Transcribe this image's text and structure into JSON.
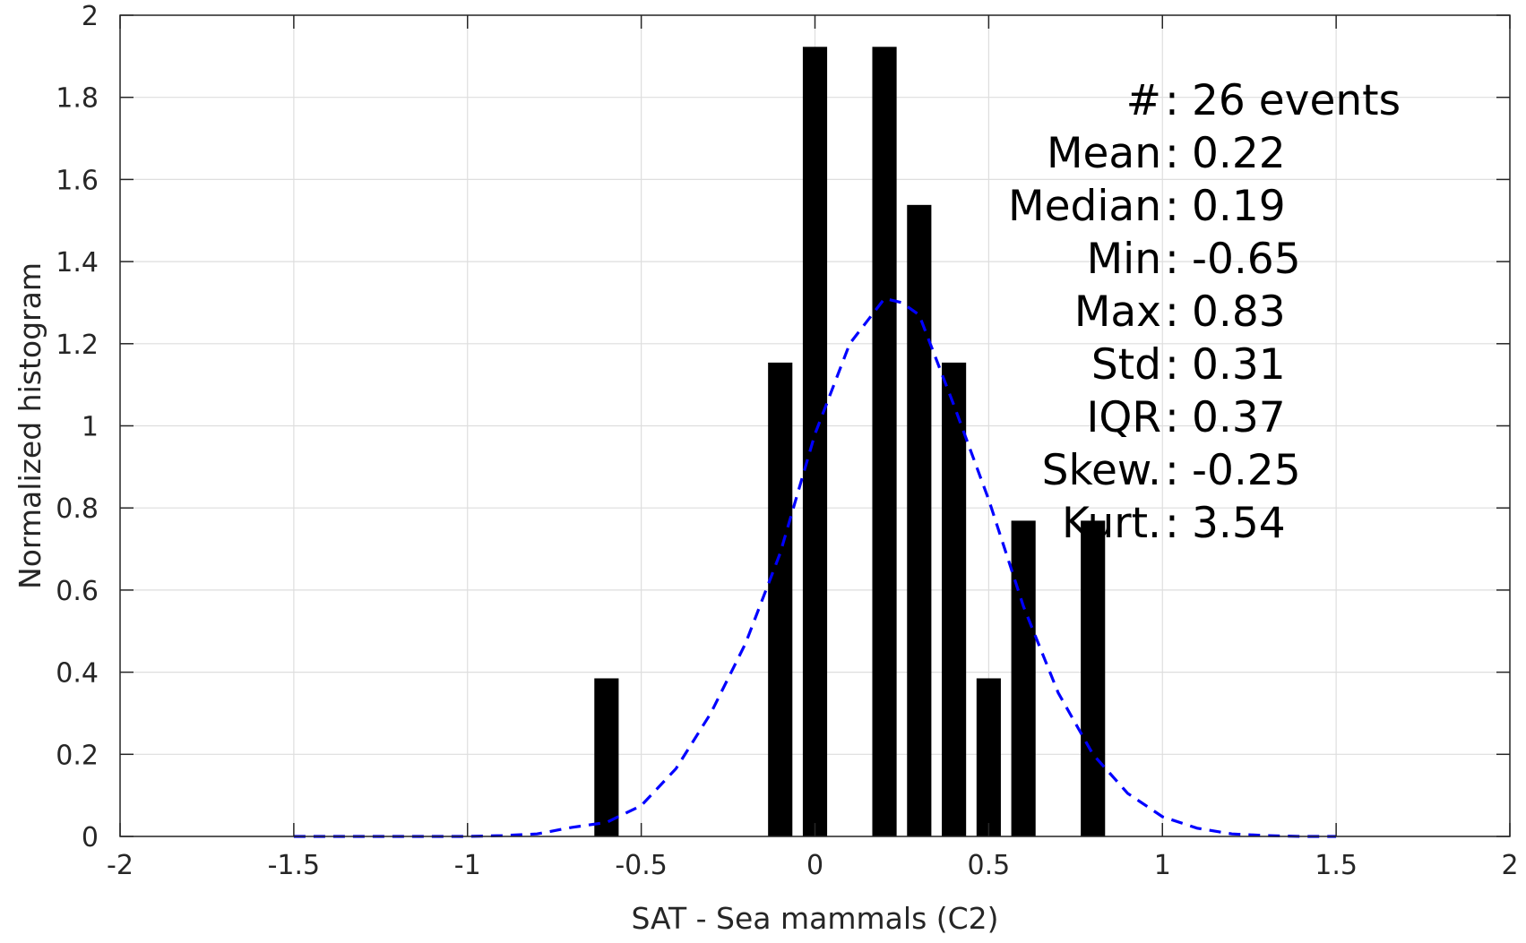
{
  "chart_data": {
    "type": "bar",
    "xlabel": "SAT - Sea mammals  (C2)",
    "ylabel": "Normalized histogram",
    "xlim": [
      -2,
      2
    ],
    "ylim": [
      0,
      2
    ],
    "xticks": [
      -2,
      -1.5,
      -1,
      -0.5,
      0,
      0.5,
      1,
      1.5,
      2
    ],
    "xtick_labels": [
      "-2",
      "-1.5",
      "-1",
      "-0.5",
      "0",
      "0.5",
      "1",
      "1.5",
      "2"
    ],
    "yticks": [
      0,
      0.2,
      0.4,
      0.6,
      0.8,
      1,
      1.2,
      1.4,
      1.6,
      1.8,
      2
    ],
    "ytick_labels": [
      "0",
      "0.2",
      "0.4",
      "0.6",
      "0.8",
      "1",
      "1.2",
      "1.4",
      "1.6",
      "1.8",
      "2"
    ],
    "grid": true,
    "bar_width": 0.07,
    "bar_color": "#000000",
    "bars": [
      {
        "x": -0.6,
        "y": 0.385
      },
      {
        "x": -0.1,
        "y": 1.154
      },
      {
        "x": 0.0,
        "y": 1.923
      },
      {
        "x": 0.2,
        "y": 1.923
      },
      {
        "x": 0.3,
        "y": 1.538
      },
      {
        "x": 0.4,
        "y": 1.154
      },
      {
        "x": 0.5,
        "y": 0.385
      },
      {
        "x": 0.6,
        "y": 0.769
      },
      {
        "x": 0.8,
        "y": 0.769
      }
    ],
    "fit_curve": {
      "style": "dashed",
      "color": "#0000ff",
      "x": [
        -1.5,
        -1.4,
        -1.3,
        -1.2,
        -1.1,
        -1.0,
        -0.9,
        -0.8,
        -0.7,
        -0.6,
        -0.5,
        -0.4,
        -0.3,
        -0.2,
        -0.1,
        0.0,
        0.1,
        0.2,
        0.25,
        0.3,
        0.4,
        0.5,
        0.6,
        0.7,
        0.8,
        0.9,
        1.0,
        1.1,
        1.2,
        1.3,
        1.4,
        1.5
      ],
      "y": [
        0.0,
        0.0,
        0.0,
        0.0,
        0.0,
        0.0,
        0.002,
        0.006,
        0.022,
        0.034,
        0.075,
        0.165,
        0.3,
        0.47,
        0.69,
        0.98,
        1.2,
        1.31,
        1.3,
        1.27,
        1.05,
        0.82,
        0.56,
        0.35,
        0.2,
        0.105,
        0.048,
        0.02,
        0.006,
        0.002,
        0.0,
        0.0
      ]
    },
    "annotation": [
      {
        "label": "#  ",
        "sep": ":",
        "value": "26 events"
      },
      {
        "label": "Mean ",
        "sep": ":",
        "value": "0.22"
      },
      {
        "label": "Median ",
        "sep": ":",
        "value": "0.19"
      },
      {
        "label": "Min ",
        "sep": ":",
        "value": "-0.65"
      },
      {
        "label": "Max ",
        "sep": ":",
        "value": "0.83"
      },
      {
        "label": "Std ",
        "sep": ":",
        "value": "0.31"
      },
      {
        "label": "IQR ",
        "sep": ":",
        "value": "0.37"
      },
      {
        "label": "Skew. ",
        "sep": ":",
        "value": "-0.25"
      },
      {
        "label": "Kurt. ",
        "sep": ":",
        "value": "3.54"
      }
    ]
  }
}
